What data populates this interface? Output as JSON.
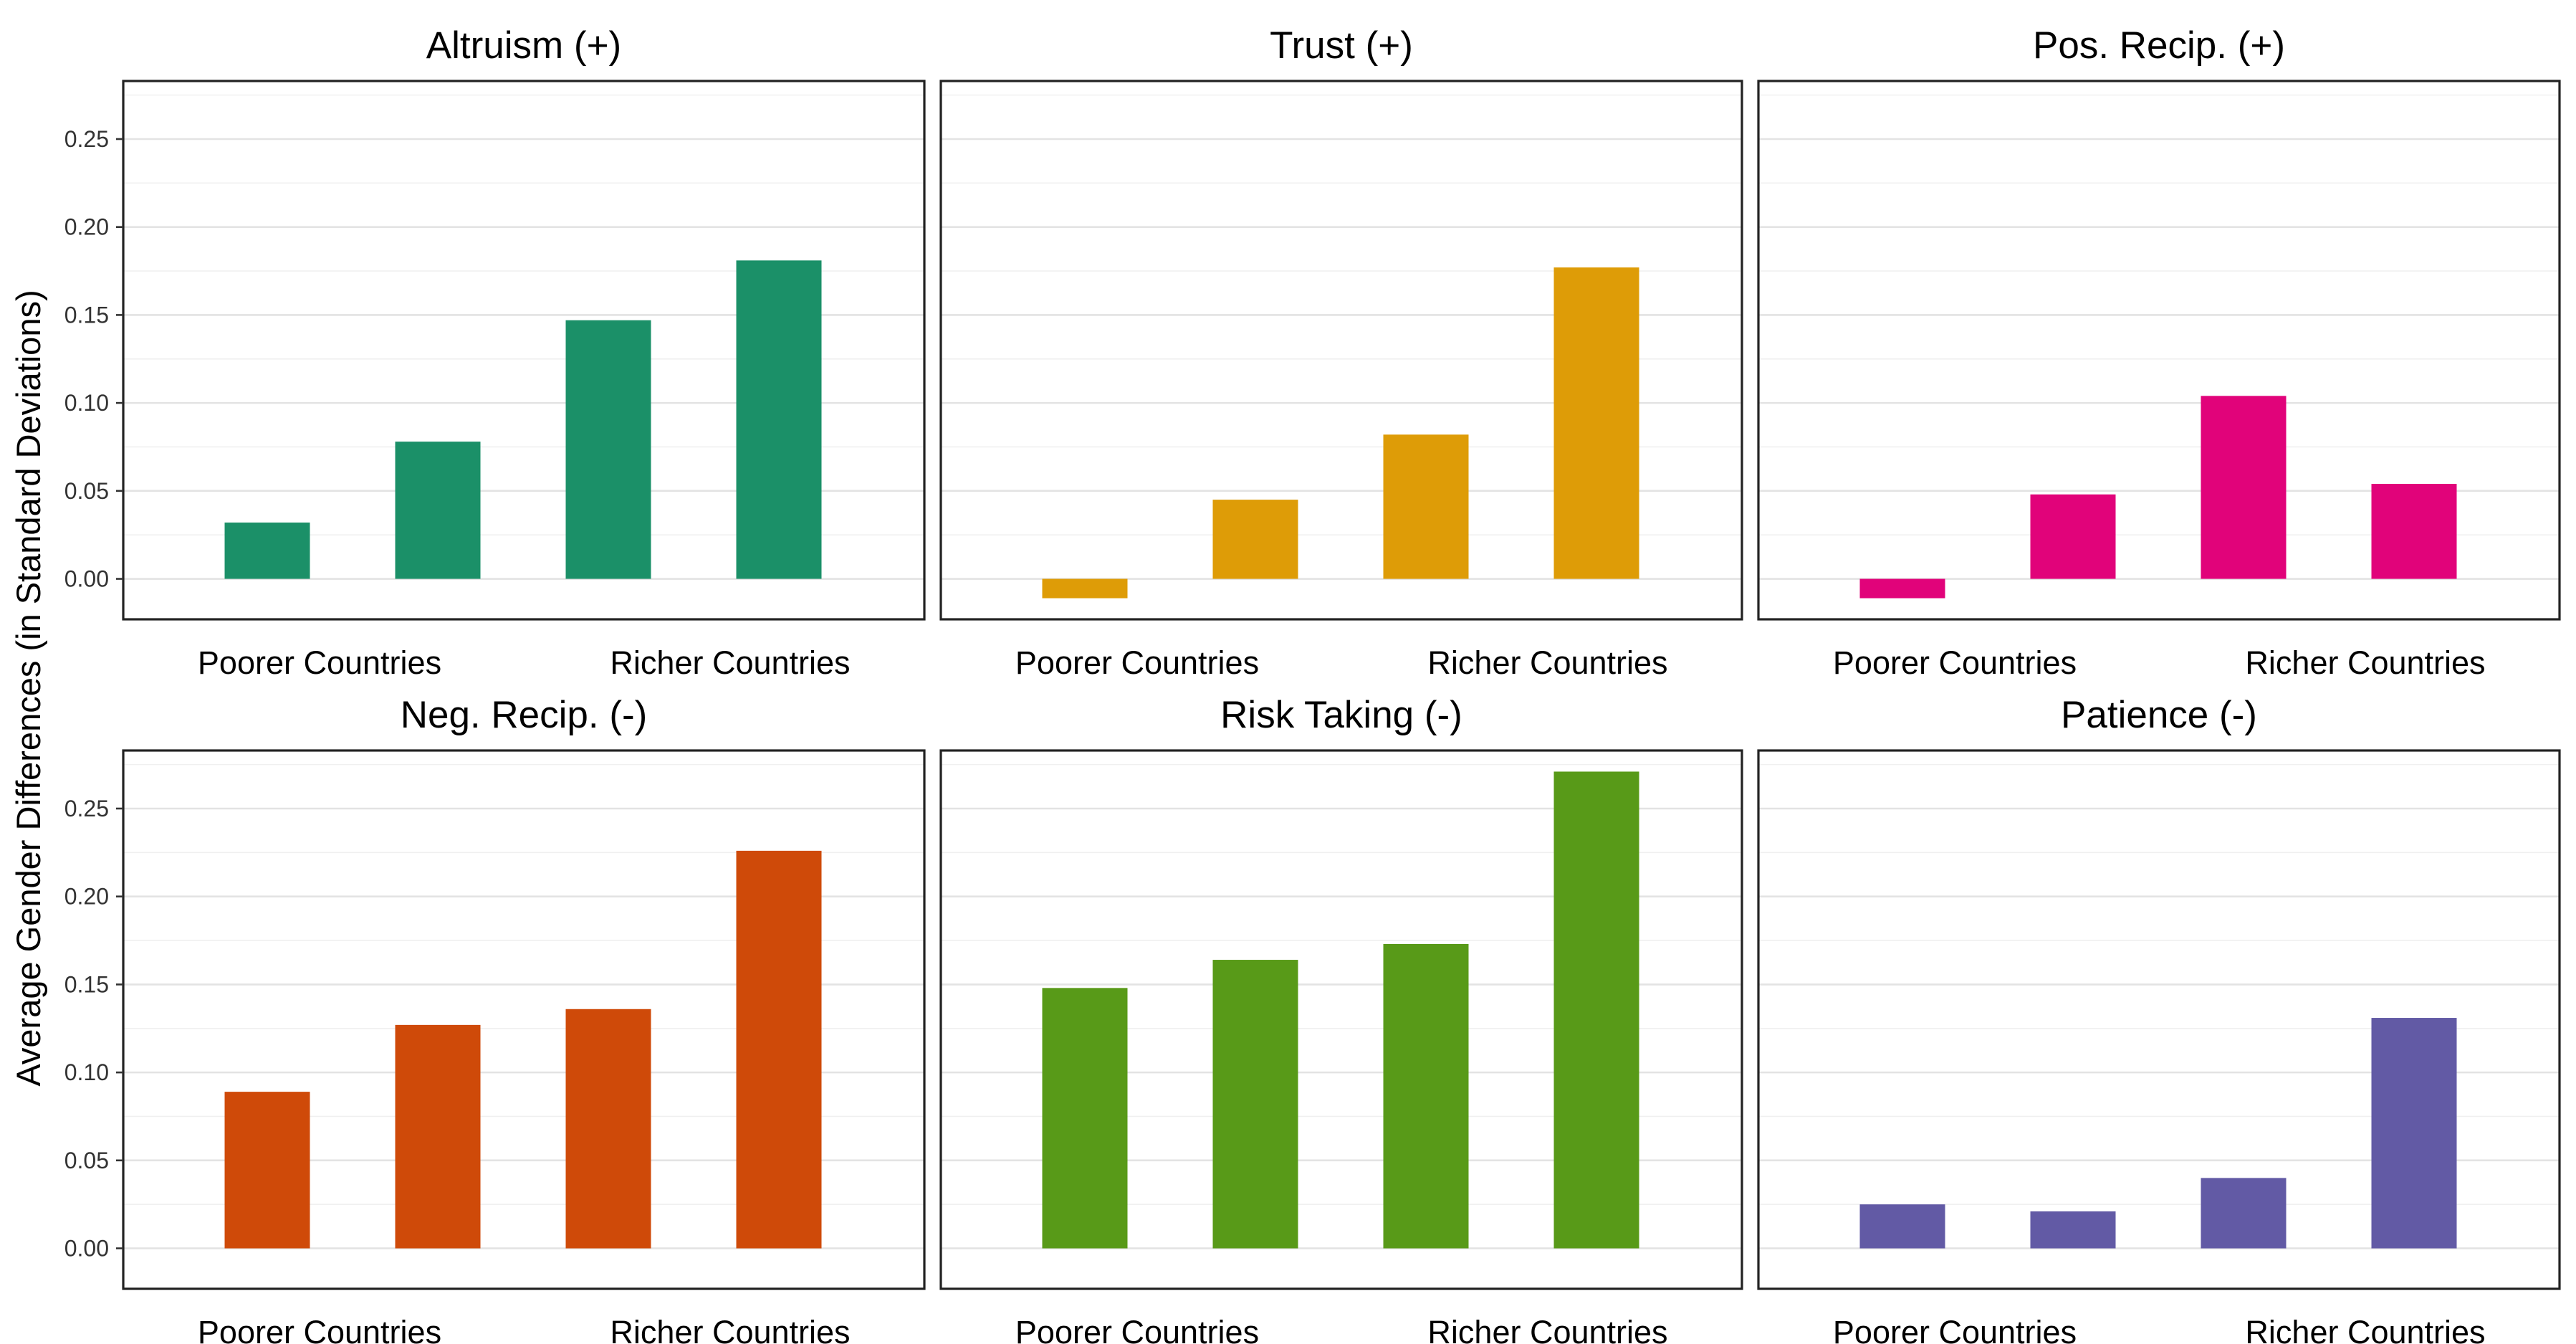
{
  "chart_data": {
    "type": "bar",
    "layout": "facet-grid-2x3",
    "ylabel": "Average Gender Differences (in Standard Deviations)",
    "xlabel": "",
    "ylim": [
      -0.023,
      0.283
    ],
    "yticks": [
      0.0,
      0.05,
      0.1,
      0.15,
      0.2,
      0.25
    ],
    "ytick_labels": [
      "0.00",
      "0.05",
      "0.10",
      "0.15",
      "0.20",
      "0.25"
    ],
    "x_tick_labels": [
      "Poorer Countries",
      "Richer Countries"
    ],
    "categories": [
      "1",
      "2",
      "3",
      "4"
    ],
    "grid": true,
    "panels": [
      {
        "title": "Altruism (+)",
        "color": "#1b9068",
        "values": [
          0.032,
          0.078,
          0.147,
          0.181
        ]
      },
      {
        "title": "Trust (+)",
        "color": "#de9c07",
        "values": [
          -0.011,
          0.045,
          0.082,
          0.177
        ]
      },
      {
        "title": "Pos. Recip. (+)",
        "color": "#e1037a",
        "values": [
          -0.011,
          0.048,
          0.104,
          0.054
        ]
      },
      {
        "title": "Neg. Recip. (-)",
        "color": "#cf4a09",
        "values": [
          0.089,
          0.127,
          0.136,
          0.226
        ]
      },
      {
        "title": "Risk Taking (-)",
        "color": "#589a18",
        "values": [
          0.148,
          0.164,
          0.173,
          0.271
        ]
      },
      {
        "title": "Patience (-)",
        "color": "#625aa5",
        "values": [
          0.025,
          0.021,
          0.04,
          0.131
        ]
      }
    ]
  }
}
